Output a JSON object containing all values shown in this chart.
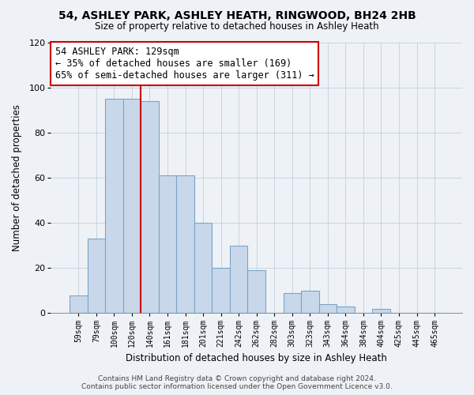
{
  "title": "54, ASHLEY PARK, ASHLEY HEATH, RINGWOOD, BH24 2HB",
  "subtitle": "Size of property relative to detached houses in Ashley Heath",
  "xlabel": "Distribution of detached houses by size in Ashley Heath",
  "ylabel": "Number of detached properties",
  "bar_labels": [
    "59sqm",
    "79sqm",
    "100sqm",
    "120sqm",
    "140sqm",
    "161sqm",
    "181sqm",
    "201sqm",
    "221sqm",
    "242sqm",
    "262sqm",
    "282sqm",
    "303sqm",
    "323sqm",
    "343sqm",
    "364sqm",
    "384sqm",
    "404sqm",
    "425sqm",
    "445sqm",
    "465sqm"
  ],
  "bar_values": [
    8,
    33,
    95,
    95,
    94,
    61,
    61,
    40,
    20,
    30,
    19,
    0,
    9,
    10,
    4,
    3,
    0,
    2,
    0,
    0,
    0
  ],
  "bar_color": "#c8d8ea",
  "bar_edge_color": "#7ba4c8",
  "vline_x": 3.5,
  "vline_color": "#cc0000",
  "annotation_text": "54 ASHLEY PARK: 129sqm\n← 35% of detached houses are smaller (169)\n65% of semi-detached houses are larger (311) →",
  "annotation_box_color": "white",
  "annotation_box_edge": "#cc0000",
  "ylim": [
    0,
    120
  ],
  "yticks": [
    0,
    20,
    40,
    60,
    80,
    100,
    120
  ],
  "footer": "Contains HM Land Registry data © Crown copyright and database right 2024.\nContains public sector information licensed under the Open Government Licence v3.0.",
  "bg_color": "#eef2f7",
  "plot_bg_color": "#eef2f7",
  "grid_color": "#c8d4e0"
}
